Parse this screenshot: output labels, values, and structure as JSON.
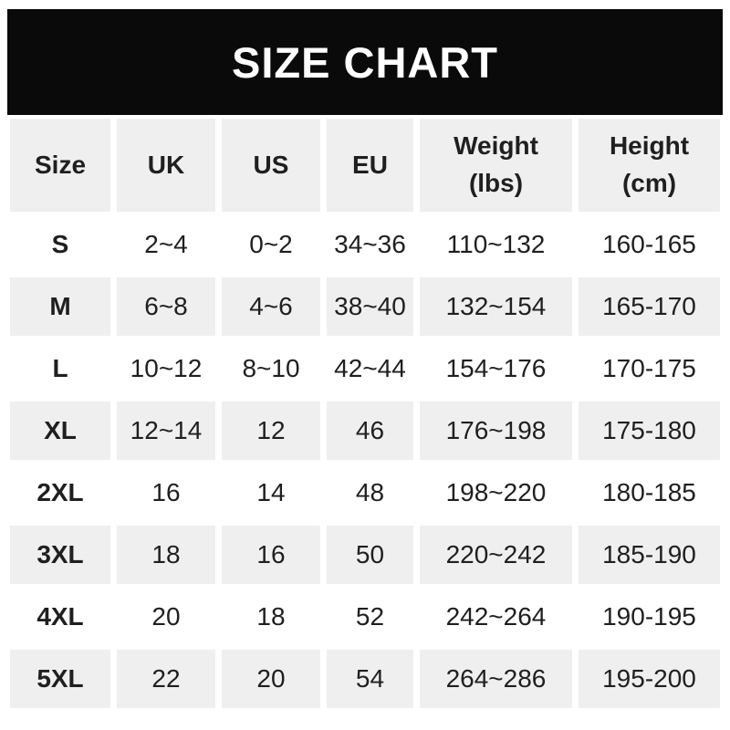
{
  "title": "SIZE CHART",
  "colors": {
    "banner_bg": "#0a0a0a",
    "banner_text": "#ffffff",
    "alt_row_bg": "#efefef",
    "text": "#1f1f1f",
    "page_bg": "#ffffff"
  },
  "table": {
    "columns": [
      {
        "key": "size",
        "label": "Size"
      },
      {
        "key": "uk",
        "label": "UK"
      },
      {
        "key": "us",
        "label": "US"
      },
      {
        "key": "eu",
        "label": "EU"
      },
      {
        "key": "weight",
        "label": "Weight\n(lbs)"
      },
      {
        "key": "height",
        "label": "Height\n(cm)"
      }
    ],
    "rows": [
      {
        "size": "S",
        "uk": "2~4",
        "us": "0~2",
        "eu": "34~36",
        "weight": "110~132",
        "height": "160-165"
      },
      {
        "size": "M",
        "uk": "6~8",
        "us": "4~6",
        "eu": "38~40",
        "weight": "132~154",
        "height": "165-170"
      },
      {
        "size": "L",
        "uk": "10~12",
        "us": "8~10",
        "eu": "42~44",
        "weight": "154~176",
        "height": "170-175"
      },
      {
        "size": "XL",
        "uk": "12~14",
        "us": "12",
        "eu": "46",
        "weight": "176~198",
        "height": "175-180"
      },
      {
        "size": "2XL",
        "uk": "16",
        "us": "14",
        "eu": "48",
        "weight": "198~220",
        "height": "180-185"
      },
      {
        "size": "3XL",
        "uk": "18",
        "us": "16",
        "eu": "50",
        "weight": "220~242",
        "height": "185-190"
      },
      {
        "size": "4XL",
        "uk": "20",
        "us": "18",
        "eu": "52",
        "weight": "242~264",
        "height": "190-195"
      },
      {
        "size": "5XL",
        "uk": "22",
        "us": "20",
        "eu": "54",
        "weight": "264~286",
        "height": "195-200"
      }
    ]
  },
  "chart_data": {
    "type": "table",
    "title": "SIZE CHART",
    "columns": [
      "Size",
      "UK",
      "US",
      "EU",
      "Weight (lbs)",
      "Height (cm)"
    ],
    "rows": [
      [
        "S",
        "2~4",
        "0~2",
        "34~36",
        "110~132",
        "160-165"
      ],
      [
        "M",
        "6~8",
        "4~6",
        "38~40",
        "132~154",
        "165-170"
      ],
      [
        "L",
        "10~12",
        "8~10",
        "42~44",
        "154~176",
        "170-175"
      ],
      [
        "XL",
        "12~14",
        "12",
        "46",
        "176~198",
        "175-180"
      ],
      [
        "2XL",
        "16",
        "14",
        "48",
        "198~220",
        "180-185"
      ],
      [
        "3XL",
        "18",
        "16",
        "50",
        "220~242",
        "185-190"
      ],
      [
        "4XL",
        "20",
        "18",
        "52",
        "242~264",
        "190-195"
      ],
      [
        "5XL",
        "22",
        "20",
        "54",
        "264~286",
        "195-200"
      ]
    ]
  }
}
